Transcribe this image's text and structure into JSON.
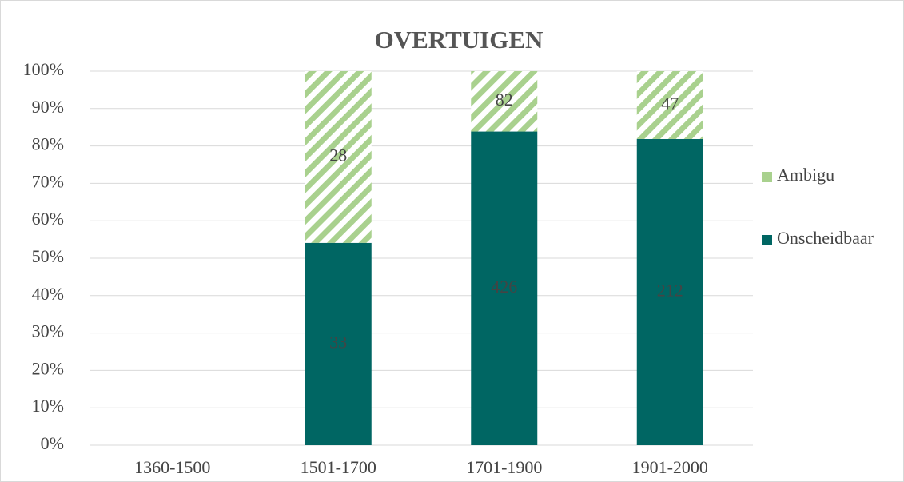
{
  "chart_data": {
    "type": "bar",
    "stacking": "percent",
    "title": "OVERTUIGEN",
    "categories": [
      "1360-1500",
      "1501-1700",
      "1701-1900",
      "1901-2000"
    ],
    "series": [
      {
        "name": "Onscheidbaar",
        "color": "#006663",
        "values": [
          null,
          33,
          426,
          212
        ]
      },
      {
        "name": "Ambigu",
        "color": "#a9d18e",
        "pattern": "hatch",
        "values": [
          null,
          28,
          82,
          47
        ]
      }
    ],
    "ylim": [
      0,
      100
    ],
    "yticks": [
      {
        "value": 0,
        "label": "0%"
      },
      {
        "value": 10,
        "label": "10%"
      },
      {
        "value": 20,
        "label": "20%"
      },
      {
        "value": 30,
        "label": "30%"
      },
      {
        "value": 40,
        "label": "40%"
      },
      {
        "value": 50,
        "label": "50%"
      },
      {
        "value": 60,
        "label": "60%"
      },
      {
        "value": 70,
        "label": "70%"
      },
      {
        "value": 80,
        "label": "80%"
      },
      {
        "value": 90,
        "label": "90%"
      },
      {
        "value": 100,
        "label": "100%"
      }
    ],
    "grid": true,
    "legend": "right"
  }
}
